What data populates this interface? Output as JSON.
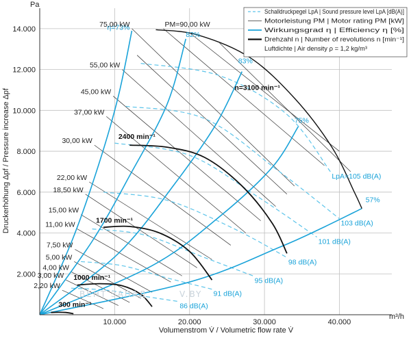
{
  "chart_data": {
    "type": "line",
    "x_unit": "m³/h",
    "y_unit": "Pa",
    "xlabel": "Volumenstrom V̇ / Volumetric flow rate V̇",
    "ylabel": "Druckerhöhung Δpf / Pressure increase Δpf",
    "xlim": [
      0,
      47000
    ],
    "ylim": [
      0,
      15000
    ],
    "x_ticks": [
      {
        "v": 10000,
        "label": "10.000"
      },
      {
        "v": 20000,
        "label": "20.000"
      },
      {
        "v": 30000,
        "label": "30.000"
      },
      {
        "v": 40000,
        "label": "40.000"
      }
    ],
    "y_ticks": [
      {
        "v": 2000,
        "label": "2.000"
      },
      {
        "v": 4000,
        "label": "4.000"
      },
      {
        "v": 6000,
        "label": "6.000"
      },
      {
        "v": 8000,
        "label": "8.000"
      },
      {
        "v": 10000,
        "label": "10.000"
      },
      {
        "v": 12000,
        "label": "12.000"
      },
      {
        "v": 14000,
        "label": "14.000"
      }
    ],
    "legend": [
      {
        "style": "dashed-cyan",
        "text": "Schalldruckpegel LpA | Sound pressure level LpA [dB(A)]"
      },
      {
        "style": "thin-black",
        "text": "Motorleistung PM | Motor rating PM [kW]"
      },
      {
        "style": "cyan",
        "text": "Wirkungsgrad η | Efficiency η [%]"
      },
      {
        "style": "thick-black",
        "text": "Drehzahl n | Number of revolutions n [min⁻¹]"
      },
      {
        "style": "none",
        "text": "Luftdichte | Air density ρ = 1,2 kg/m³"
      }
    ],
    "speed_curves": [
      {
        "label": "300 min⁻¹",
        "pts": [
          [
            1500,
            110
          ],
          [
            2500,
            120
          ],
          [
            3500,
            110
          ],
          [
            4500,
            50
          ]
        ]
      },
      {
        "label": "1000 min⁻¹",
        "pts": [
          [
            5000,
            1450
          ],
          [
            8000,
            1520
          ],
          [
            11000,
            1420
          ],
          [
            13500,
            1000
          ],
          [
            15000,
            400
          ]
        ]
      },
      {
        "label": "1700 min⁻¹",
        "pts": [
          [
            8500,
            4280
          ],
          [
            12000,
            4320
          ],
          [
            16000,
            4000
          ],
          [
            20000,
            3100
          ],
          [
            23000,
            1700
          ]
        ]
      },
      {
        "label": "2400 min⁻¹",
        "pts": [
          [
            12000,
            8300
          ],
          [
            17000,
            8200
          ],
          [
            22000,
            7700
          ],
          [
            27000,
            6300
          ],
          [
            31000,
            4500
          ],
          [
            33000,
            3000
          ]
        ]
      },
      {
        "label": "n=3100 min⁻¹",
        "pts": [
          [
            15500,
            13950
          ],
          [
            21000,
            13700
          ],
          [
            28000,
            12600
          ],
          [
            34000,
            10600
          ],
          [
            39000,
            8200
          ],
          [
            42000,
            6000
          ],
          [
            43000,
            5200
          ]
        ]
      }
    ],
    "efficiency_curves": [
      {
        "label": "η=73%",
        "pts": [
          [
            0,
            0
          ],
          [
            4500,
            3800
          ],
          [
            8000,
            7500
          ],
          [
            10500,
            10700
          ],
          [
            12300,
            13900
          ]
        ]
      },
      {
        "label": "82%",
        "pts": [
          [
            0,
            0
          ],
          [
            7000,
            3600
          ],
          [
            12000,
            6800
          ],
          [
            17000,
            10300
          ],
          [
            19500,
            13500
          ]
        ]
      },
      {
        "label": "83%",
        "pts": [
          [
            0,
            0
          ],
          [
            10500,
            3000
          ],
          [
            18000,
            6400
          ],
          [
            23500,
            9300
          ],
          [
            27000,
            11900
          ]
        ]
      },
      {
        "label": "75%",
        "pts": [
          [
            0,
            0
          ],
          [
            15000,
            2400
          ],
          [
            24000,
            4800
          ],
          [
            31000,
            7200
          ],
          [
            34500,
            9200
          ]
        ]
      },
      {
        "label": "57%",
        "pts": [
          [
            0,
            0
          ],
          [
            20000,
            1600
          ],
          [
            32000,
            3300
          ],
          [
            38000,
            4300
          ],
          [
            43000,
            5200
          ]
        ]
      }
    ],
    "power_labels": [
      {
        "label": "75,00 kW",
        "x": 12300,
        "y": 14000
      },
      {
        "label": "PM=90,00 kW",
        "x": 16500,
        "y": 14000
      },
      {
        "label": "55,00 kW",
        "x": 11000,
        "y": 12000
      },
      {
        "label": "45,00 kW",
        "x": 9800,
        "y": 10700
      },
      {
        "label": "37,00 kW",
        "x": 8900,
        "y": 9700
      },
      {
        "label": "30,00 kW",
        "x": 7300,
        "y": 8300
      },
      {
        "label": "22,00 kW",
        "x": 6600,
        "y": 6500
      },
      {
        "label": "18,50 kW",
        "x": 6100,
        "y": 5900
      },
      {
        "label": "15,00 kW",
        "x": 5500,
        "y": 4900
      },
      {
        "label": "11,00 kW",
        "x": 5000,
        "y": 4200
      },
      {
        "label": "7,50 kW",
        "x": 4700,
        "y": 3200
      },
      {
        "label": "5,00 kW",
        "x": 4600,
        "y": 2600
      },
      {
        "label": "4,00 kW",
        "x": 4200,
        "y": 2100
      },
      {
        "label": "3,00 kW",
        "x": 3500,
        "y": 1700
      },
      {
        "label": "2,20 kW",
        "x": 3000,
        "y": 1200
      }
    ],
    "sound_labels": [
      {
        "label": "LpA=105 dB(A)",
        "x": 38800,
        "y": 7000
      },
      {
        "label": "103 dB(A)",
        "x": 40000,
        "y": 4700
      },
      {
        "label": "101 dB(A)",
        "x": 37000,
        "y": 3800
      },
      {
        "label": "98 dB(A)",
        "x": 33000,
        "y": 2800
      },
      {
        "label": "95 dB(A)",
        "x": 28500,
        "y": 1900
      },
      {
        "label": "91 dB(A)",
        "x": 23000,
        "y": 1250
      },
      {
        "label": "86 dB(A)",
        "x": 18500,
        "y": 650
      }
    ],
    "watermark": "ВЕНТ ЗАПАД",
    "watermark2": "V.BY"
  }
}
